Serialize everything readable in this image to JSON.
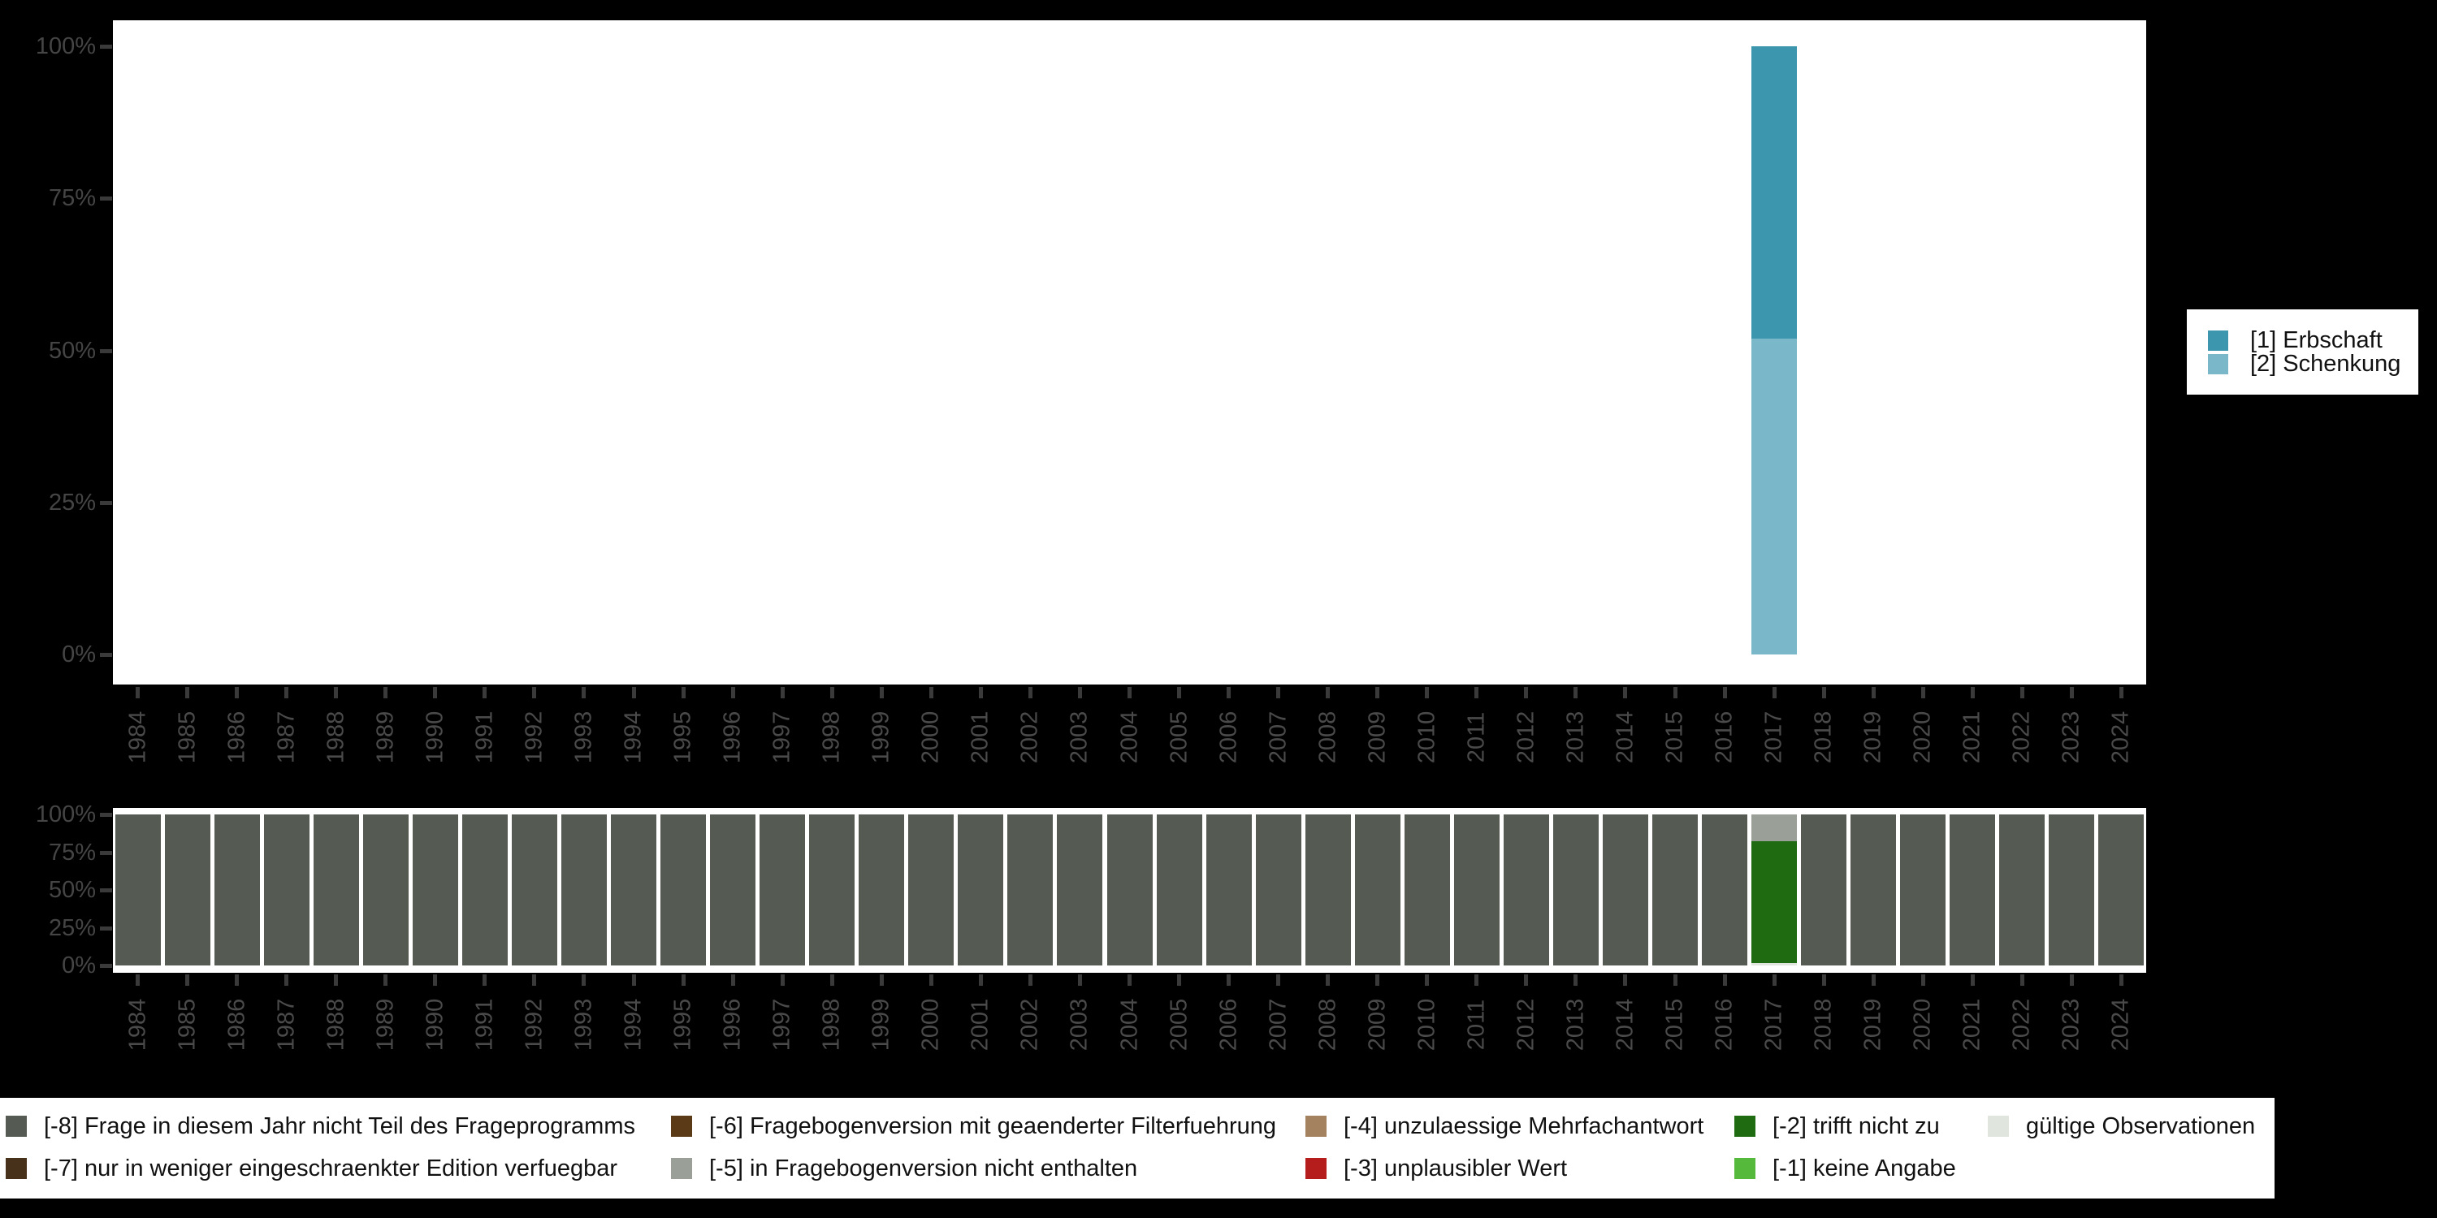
{
  "colors": {
    "background": "#000000",
    "panel": "#ffffff",
    "axis_text": "#4a4a4a",
    "tick_mark": "#3a3a3a",
    "erbschaft": "#3c96ad",
    "schenkung": "#7ab7c9",
    "m8": "#555b53",
    "m7": "#47311a",
    "m6": "#5a3a17",
    "m5": "#9aa098",
    "m4": "#a5825f",
    "m3": "#b51c1c",
    "m2": "#1e6b12",
    "m1": "#55b93c",
    "valid": "#e0e5dd"
  },
  "chart_data": [
    {
      "type": "bar",
      "stacked": true,
      "title": "",
      "x": [
        1984,
        1985,
        1986,
        1987,
        1988,
        1989,
        1990,
        1991,
        1992,
        1993,
        1994,
        1995,
        1996,
        1997,
        1998,
        1999,
        2000,
        2001,
        2002,
        2003,
        2004,
        2005,
        2006,
        2007,
        2008,
        2009,
        2010,
        2011,
        2012,
        2013,
        2014,
        2015,
        2016,
        2017,
        2018,
        2019,
        2020,
        2021,
        2022,
        2023,
        2024
      ],
      "ylim": [
        0,
        100
      ],
      "ytick_labels": [
        "0%",
        "25%",
        "50%",
        "75%",
        "100%"
      ],
      "grid": false,
      "legend_position": "right",
      "series": [
        {
          "name": "[2] Schenkung",
          "color_key": "schenkung",
          "values": [
            null,
            null,
            null,
            null,
            null,
            null,
            null,
            null,
            null,
            null,
            null,
            null,
            null,
            null,
            null,
            null,
            null,
            null,
            null,
            null,
            null,
            null,
            null,
            null,
            null,
            null,
            null,
            null,
            null,
            null,
            null,
            null,
            null,
            52,
            null,
            null,
            null,
            null,
            null,
            null,
            null
          ]
        },
        {
          "name": "[1] Erbschaft",
          "color_key": "erbschaft",
          "values": [
            null,
            null,
            null,
            null,
            null,
            null,
            null,
            null,
            null,
            null,
            null,
            null,
            null,
            null,
            null,
            null,
            null,
            null,
            null,
            null,
            null,
            null,
            null,
            null,
            null,
            null,
            null,
            null,
            null,
            null,
            null,
            null,
            null,
            48,
            null,
            null,
            null,
            null,
            null,
            null,
            null
          ]
        }
      ]
    },
    {
      "type": "bar",
      "stacked": true,
      "title": "",
      "x": [
        1984,
        1985,
        1986,
        1987,
        1988,
        1989,
        1990,
        1991,
        1992,
        1993,
        1994,
        1995,
        1996,
        1997,
        1998,
        1999,
        2000,
        2001,
        2002,
        2003,
        2004,
        2005,
        2006,
        2007,
        2008,
        2009,
        2010,
        2011,
        2012,
        2013,
        2014,
        2015,
        2016,
        2017,
        2018,
        2019,
        2020,
        2021,
        2022,
        2023,
        2024
      ],
      "ylim": [
        0,
        100
      ],
      "ytick_labels": [
        "0%",
        "25%",
        "50%",
        "75%",
        "100%"
      ],
      "grid": false,
      "legend_position": "bottom",
      "series": [
        {
          "name": "gültige Observationen",
          "color_key": "valid",
          "values": [
            0,
            0,
            0,
            0,
            0,
            0,
            0,
            0,
            0,
            0,
            0,
            0,
            0,
            0,
            0,
            0,
            0,
            0,
            0,
            0,
            0,
            0,
            0,
            0,
            0,
            0,
            0,
            0,
            0,
            0,
            0,
            0,
            0,
            1.6,
            0,
            0,
            0,
            0,
            0,
            0,
            0
          ]
        },
        {
          "name": "[-2] trifft nicht zu",
          "color_key": "m2",
          "values": [
            0,
            0,
            0,
            0,
            0,
            0,
            0,
            0,
            0,
            0,
            0,
            0,
            0,
            0,
            0,
            0,
            0,
            0,
            0,
            0,
            0,
            0,
            0,
            0,
            0,
            0,
            0,
            0,
            0,
            0,
            0,
            0,
            0,
            80.7,
            0,
            0,
            0,
            0,
            0,
            0,
            0
          ]
        },
        {
          "name": "[-5] in Fragebogenversion nicht enthalten",
          "color_key": "m5",
          "values": [
            0,
            0,
            0,
            0,
            0,
            0,
            0,
            0,
            0,
            0,
            0,
            0,
            0,
            0,
            0,
            0,
            0,
            0,
            0,
            0,
            0,
            0,
            0,
            0,
            0,
            0,
            0,
            0,
            0,
            0,
            0,
            0,
            0,
            17.7,
            0,
            0,
            0,
            0,
            0,
            0,
            0
          ]
        },
        {
          "name": "[-8] Frage in diesem Jahr nicht Teil des Frageprogramms",
          "color_key": "m8",
          "values": [
            100,
            100,
            100,
            100,
            100,
            100,
            100,
            100,
            100,
            100,
            100,
            100,
            100,
            100,
            100,
            100,
            100,
            100,
            100,
            100,
            100,
            100,
            100,
            100,
            100,
            100,
            100,
            100,
            100,
            100,
            100,
            100,
            100,
            0,
            100,
            100,
            100,
            100,
            100,
            100,
            100
          ]
        }
      ]
    }
  ],
  "right_legend": {
    "items": [
      {
        "label": "[1] Erbschaft",
        "color_key": "erbschaft"
      },
      {
        "label": "[2] Schenkung",
        "color_key": "schenkung"
      }
    ]
  },
  "bottom_legend": {
    "items": [
      {
        "label": "[-8] Frage in diesem Jahr nicht Teil des Frageprogramms",
        "color_key": "m8",
        "col": 0,
        "row": 0
      },
      {
        "label": "[-7] nur in weniger eingeschraenkter Edition verfuegbar",
        "color_key": "m7",
        "col": 0,
        "row": 1
      },
      {
        "label": "[-6] Fragebogenversion mit geaenderter Filterfuehrung",
        "color_key": "m6",
        "col": 1,
        "row": 0
      },
      {
        "label": "[-5] in Fragebogenversion nicht enthalten",
        "color_key": "m5",
        "col": 1,
        "row": 1
      },
      {
        "label": "[-4] unzulaessige Mehrfachantwort",
        "color_key": "m4",
        "col": 2,
        "row": 0
      },
      {
        "label": "[-3] unplausibler Wert",
        "color_key": "m3",
        "col": 2,
        "row": 1
      },
      {
        "label": "[-2] trifft nicht zu",
        "color_key": "m2",
        "col": 3,
        "row": 0
      },
      {
        "label": "[-1] keine Angabe",
        "color_key": "m1",
        "col": 3,
        "row": 1
      },
      {
        "label": "gültige Observationen",
        "color_key": "valid",
        "col": 4,
        "row": 0
      }
    ]
  }
}
